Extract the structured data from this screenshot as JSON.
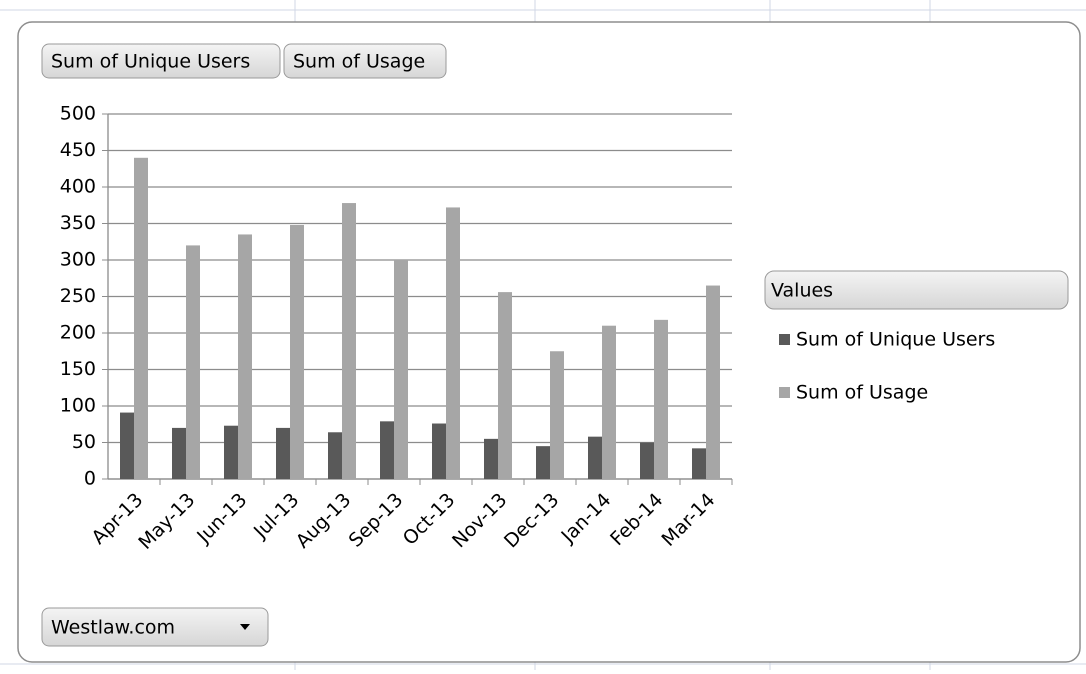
{
  "chart_data": {
    "type": "bar",
    "categories": [
      "Apr-13",
      "May-13",
      "Jun-13",
      "Jul-13",
      "Aug-13",
      "Sep-13",
      "Oct-13",
      "Nov-13",
      "Dec-13",
      "Jan-14",
      "Feb-14",
      "Mar-14"
    ],
    "series": [
      {
        "name": "Sum of Unique Users",
        "color": "#595959",
        "values": [
          91,
          70,
          73,
          70,
          64,
          79,
          76,
          55,
          45,
          58,
          50,
          42
        ]
      },
      {
        "name": "Sum of Usage",
        "color": "#a6a6a6",
        "values": [
          440,
          320,
          335,
          348,
          378,
          300,
          372,
          256,
          175,
          210,
          218,
          265
        ]
      }
    ],
    "ylim": [
      0,
      500
    ],
    "yticks": [
      0,
      50,
      100,
      150,
      200,
      250,
      300,
      350,
      400,
      450,
      500
    ],
    "grid": true,
    "legend": "right",
    "legend_title": "Values"
  },
  "field_buttons": {
    "values": [
      "Sum of Unique Users",
      "Sum of Usage"
    ],
    "filter": "Westlaw.com"
  }
}
